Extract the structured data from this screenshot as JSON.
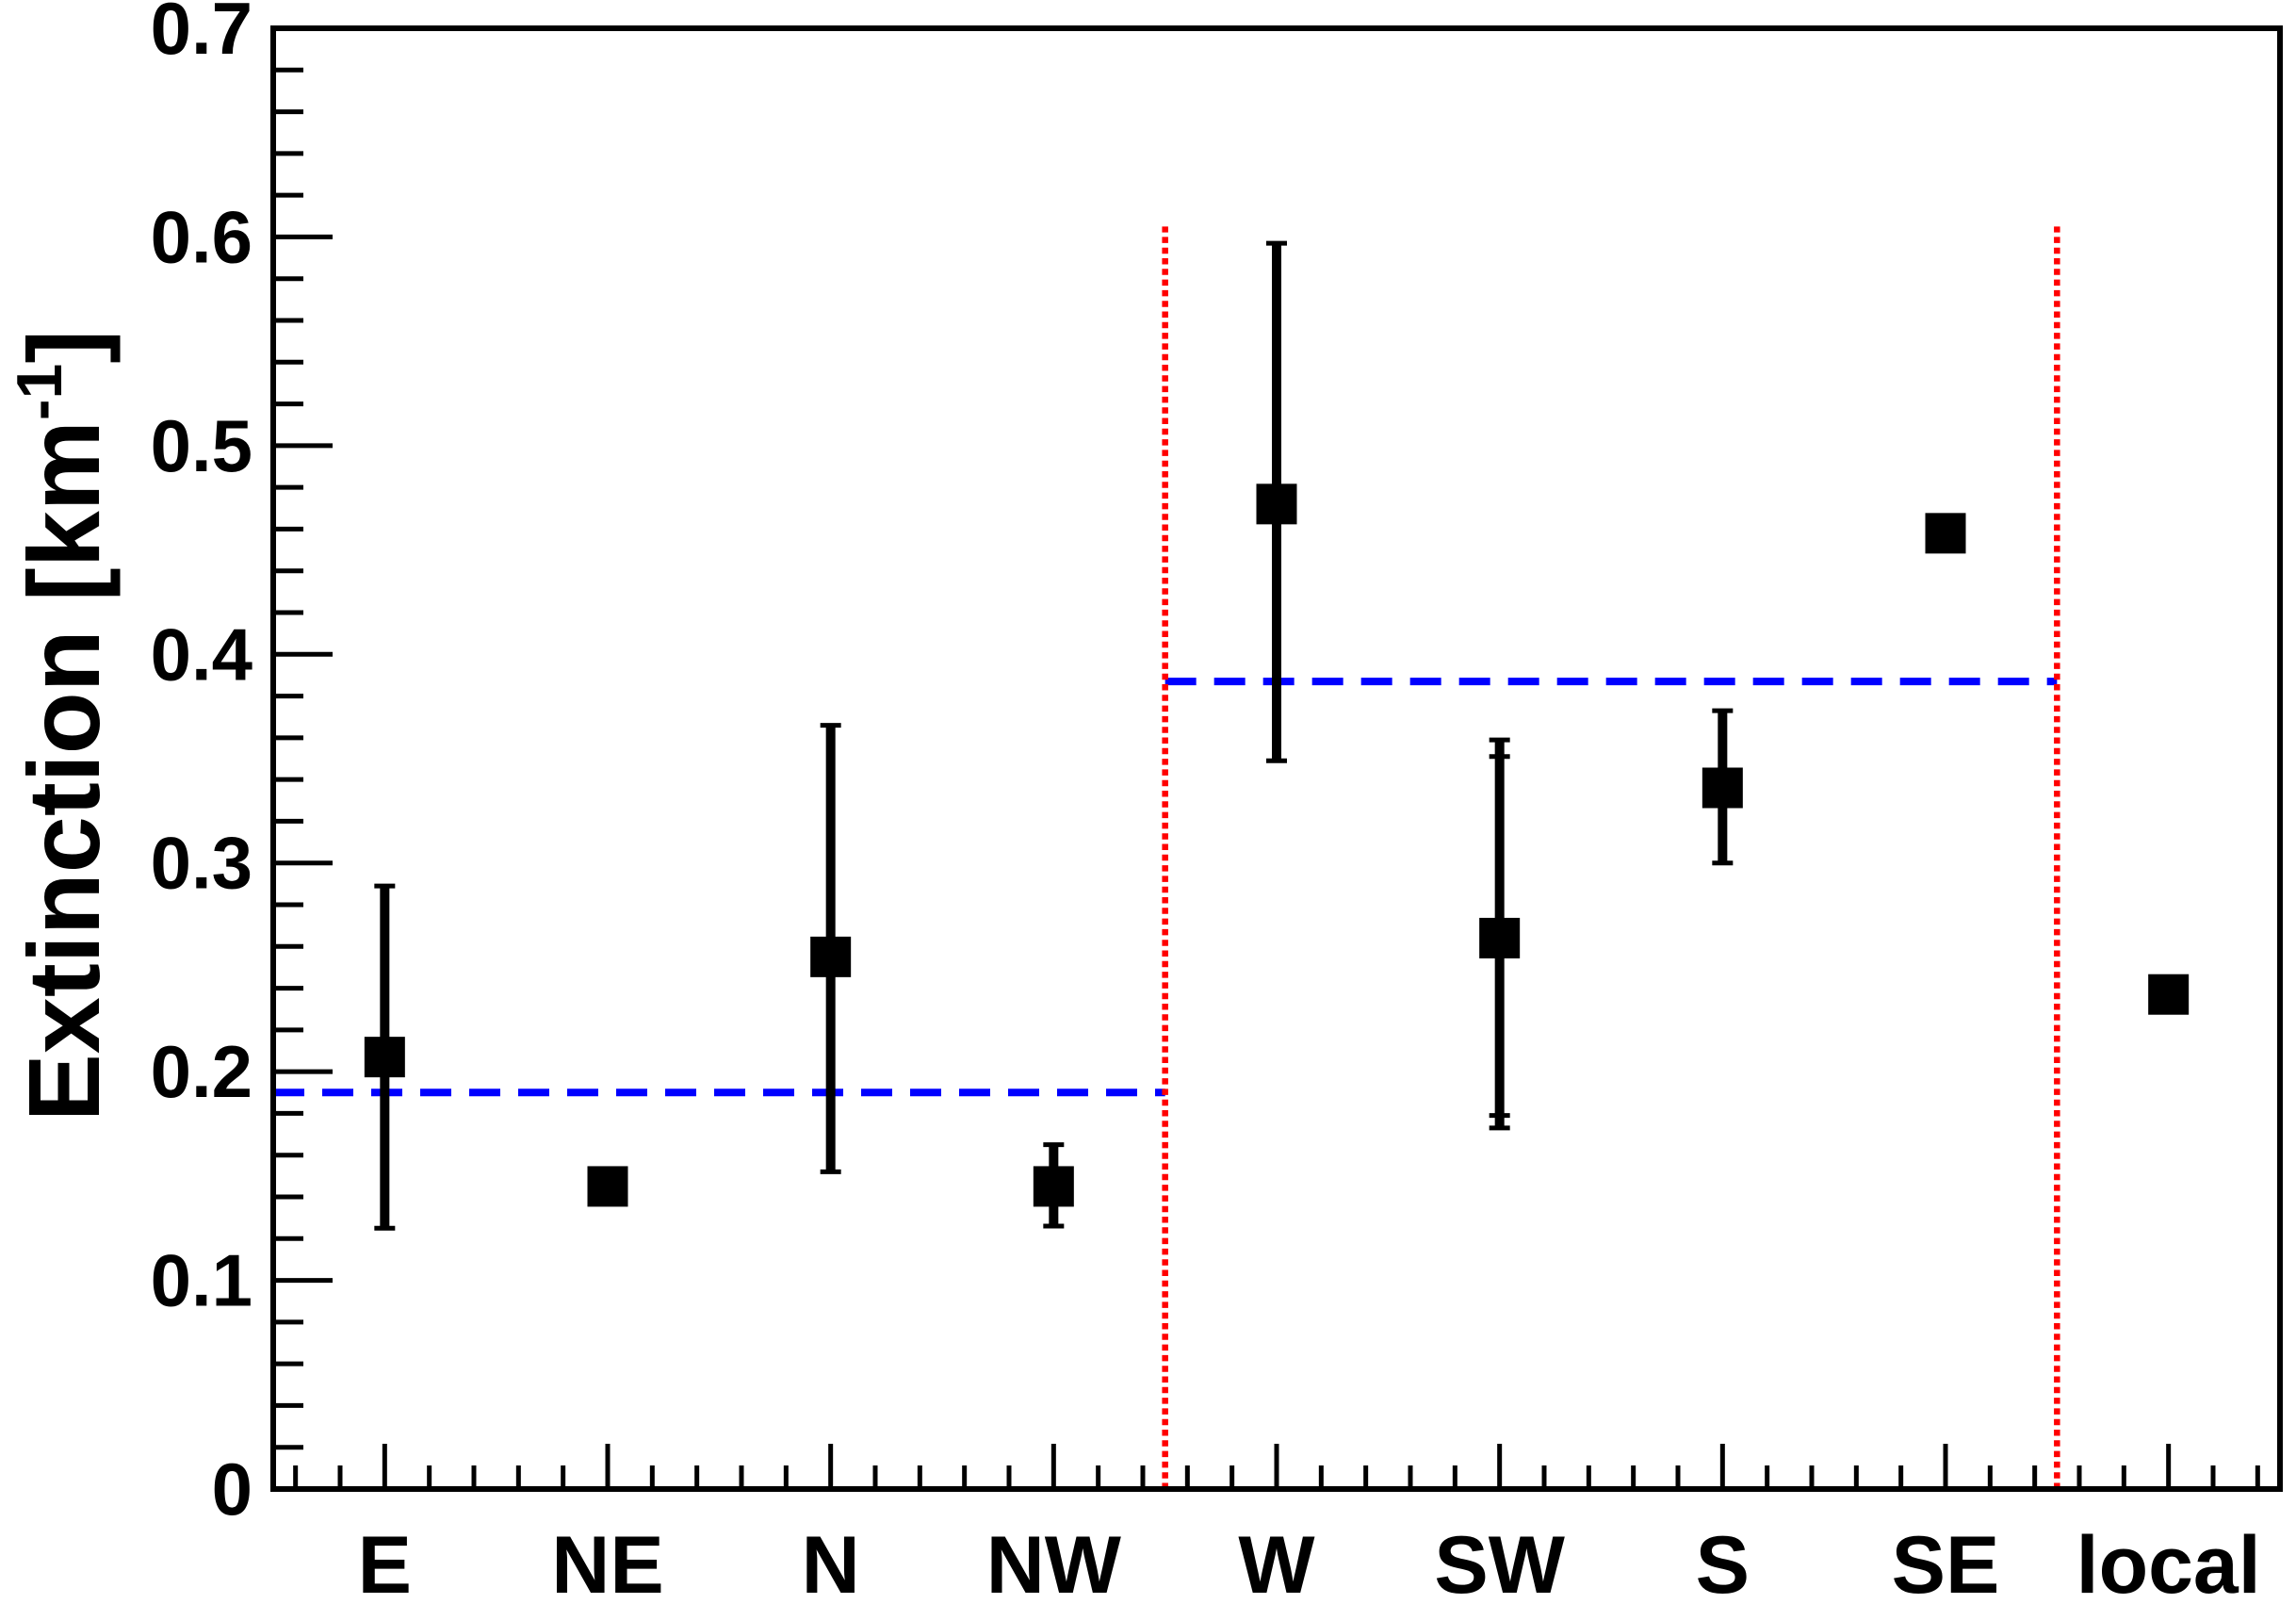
{
  "figure": {
    "background": "#ffffff",
    "frame_color": "#000000"
  },
  "chart_data": {
    "type": "scatter",
    "title": "",
    "ylabel_main": "Extinction [km",
    "ylabel_sup": "-1",
    "ylabel_end": "]",
    "xlabel": "",
    "categories": [
      "E",
      "NE",
      "N",
      "NW",
      "W",
      "SW",
      "S",
      "SE",
      "local"
    ],
    "series": [
      {
        "name": "extinction-by-direction",
        "marker": "filled-square",
        "color": "#000000",
        "values": [
          0.207,
          0.145,
          0.255,
          0.145,
          0.472,
          0.264,
          0.336,
          0.458,
          0.237
        ],
        "err_lo": [
          0.125,
          null,
          0.152,
          0.126,
          0.349,
          0.173,
          0.3,
          null,
          null
        ],
        "err_hi": [
          0.289,
          null,
          0.366,
          0.165,
          0.597,
          0.359,
          0.373,
          null,
          null
        ],
        "err2_lo": [
          null,
          null,
          null,
          null,
          null,
          0.179,
          null,
          null,
          null
        ],
        "err2_hi": [
          null,
          null,
          null,
          null,
          null,
          0.351,
          null,
          null,
          null
        ]
      }
    ],
    "mean_lines": [
      {
        "value": 0.19,
        "from_bin": 0,
        "to_bin": 4,
        "color": "#0000ff",
        "style": "dashed"
      },
      {
        "value": 0.387,
        "from_bin": 4,
        "to_bin": 8,
        "color": "#0000ff",
        "style": "dashed"
      }
    ],
    "divider_lines": [
      {
        "at_bin_boundary": 4,
        "bottom_value": 0.0,
        "top_value": 0.605,
        "color": "#ff0000",
        "style": "dotted"
      },
      {
        "at_bin_boundary": 8,
        "bottom_value": 0.0,
        "top_value": 0.605,
        "color": "#ff0000",
        "style": "dotted"
      }
    ],
    "y_axis": {
      "min": 0.0,
      "max": 0.7,
      "major_step": 0.1,
      "minor_step": 0.02,
      "tick_labels": [
        "0",
        "0.1",
        "0.2",
        "0.3",
        "0.4",
        "0.5",
        "0.6",
        "0.7"
      ]
    },
    "x_axis": {
      "bins": 9,
      "minor_ticks_per_bin": 5
    },
    "grid": false,
    "legend": null
  }
}
